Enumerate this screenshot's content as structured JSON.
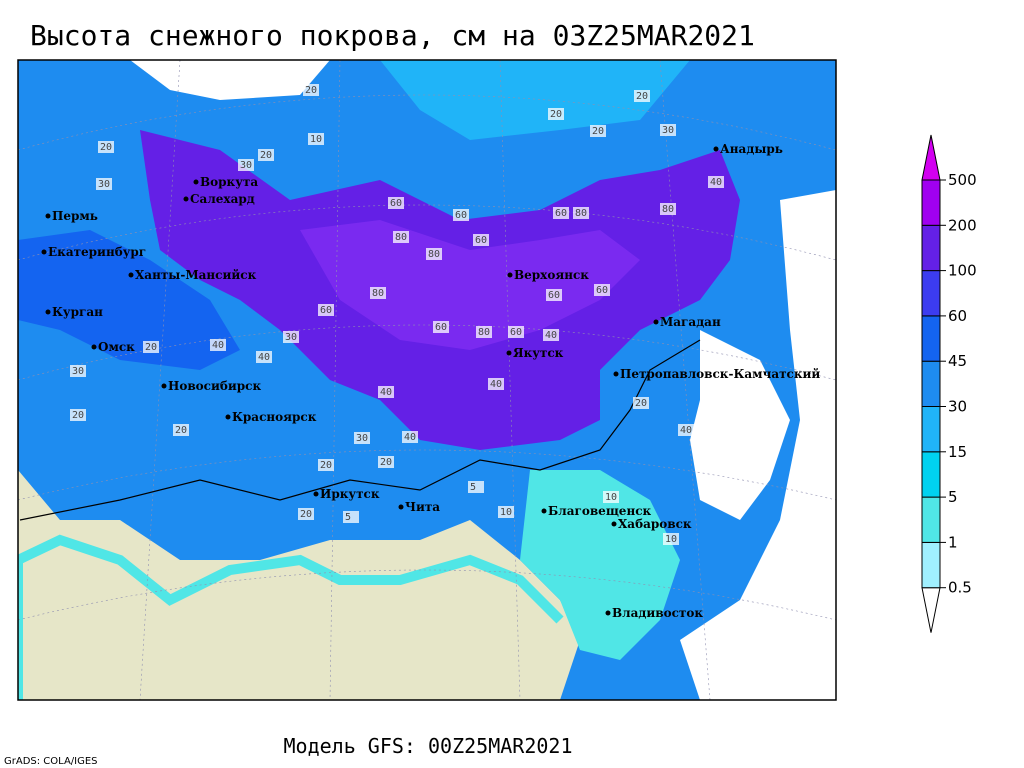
{
  "title": "Высота снежного покрова, см на 03Z25MAR2021",
  "subtitle": "Модель GFS: 00Z25MAR2021",
  "credit": "GrADS: COLA/IGES",
  "legend": {
    "levels": [
      0.5,
      1,
      5,
      15,
      30,
      45,
      60,
      100,
      200,
      500
    ],
    "colors": [
      "#ffffff",
      "#a0f0ff",
      "#50e6e6",
      "#00d2f0",
      "#20b4f8",
      "#1e8cf0",
      "#1464f0",
      "#3c3cf0",
      "#6420e6",
      "#a000f0",
      "#d200f0"
    ]
  },
  "cities": [
    "Воркута",
    "Салехард",
    "Пермь",
    "Екатеринбург",
    "Ханты-Мансийск",
    "Курган",
    "Омск",
    "Новосибирск",
    "Красноярск",
    "Иркутск",
    "Чита",
    "Благовещенск",
    "Хабаровск",
    "Владивосток",
    "Петропавловск-Камчатский",
    "Магадан",
    "Якутск",
    "Верхоянск",
    "Анадырь"
  ],
  "contour_labels": [
    30,
    20,
    30,
    20,
    10,
    20,
    20,
    20,
    30,
    20,
    40,
    60,
    60,
    80,
    80,
    60,
    60,
    80,
    80,
    80,
    60,
    60,
    80,
    60,
    40,
    30,
    40,
    20,
    40,
    40,
    30,
    20,
    60,
    60,
    40,
    20,
    20,
    5,
    10,
    5,
    20,
    10,
    40,
    20,
    20,
    10,
    30,
    40
  ]
}
